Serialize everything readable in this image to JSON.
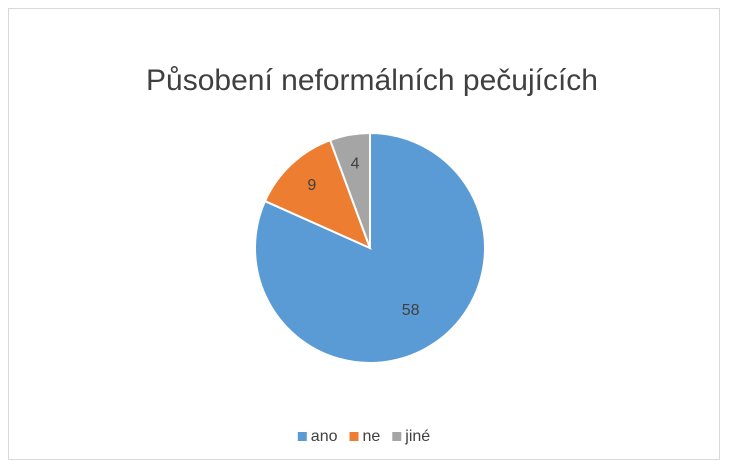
{
  "chart_data": {
    "type": "pie",
    "title": "Působení neformálních pečujících",
    "categories": [
      "ano",
      "ne",
      "jiné"
    ],
    "values": [
      58,
      9,
      4
    ],
    "colors": [
      "#5b9bd5",
      "#ed7d31",
      "#a5a5a5"
    ],
    "legend": "bottom"
  }
}
